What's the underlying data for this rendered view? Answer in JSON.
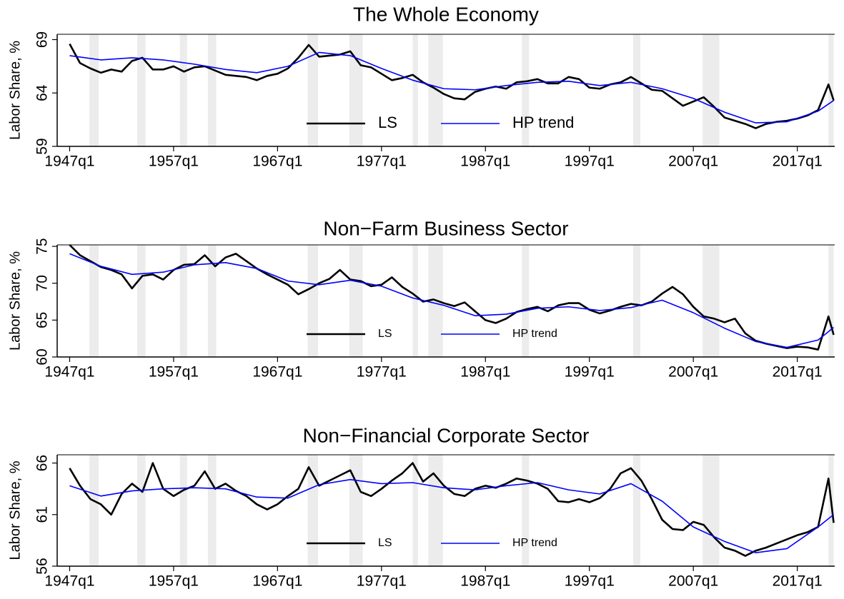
{
  "chart_data": [
    {
      "type": "line",
      "title": "The Whole Economy",
      "ylabel": "Labor Share, %",
      "xlim": [
        1945.8,
        2020.6
      ],
      "ylim": [
        59,
        69.5
      ],
      "yticks": [
        59,
        64,
        69
      ],
      "xticks": [
        {
          "value": 1947,
          "label": "1947q1"
        },
        {
          "value": 1957,
          "label": "1957q1"
        },
        {
          "value": 1967,
          "label": "1967q1"
        },
        {
          "value": 1977,
          "label": "1977q1"
        },
        {
          "value": 1987,
          "label": "1987q1"
        },
        {
          "value": 1997,
          "label": "1997q1"
        },
        {
          "value": 2007,
          "label": "2007q1"
        },
        {
          "value": 2017,
          "label": "2017q1"
        }
      ],
      "legend": "bottom",
      "recession_color": "#ececec",
      "recessions": [
        [
          1948.9,
          1949.8
        ],
        [
          1953.5,
          1954.3
        ],
        [
          1957.6,
          1958.3
        ],
        [
          1960.3,
          1961.1
        ],
        [
          1969.9,
          1970.9
        ],
        [
          1973.9,
          1975.2
        ],
        [
          1980.0,
          1980.5
        ],
        [
          1981.5,
          1982.9
        ],
        [
          1990.5,
          1991.2
        ],
        [
          2001.2,
          2001.9
        ],
        [
          2007.9,
          2009.5
        ],
        [
          2020.0,
          2020.5
        ]
      ],
      "series": [
        {
          "name": "LS",
          "color": "#000000",
          "x": [
            1947,
            1948,
            1949,
            1950,
            1951,
            1952,
            1953,
            1954,
            1955,
            1956,
            1957,
            1958,
            1959,
            1960,
            1961,
            1962,
            1963,
            1964,
            1965,
            1966,
            1967,
            1968,
            1969,
            1970,
            1971,
            1972,
            1973,
            1974,
            1975,
            1976,
            1977,
            1978,
            1979,
            1980,
            1981,
            1982,
            1983,
            1984,
            1985,
            1986,
            1987,
            1988,
            1989,
            1990,
            1991,
            1992,
            1993,
            1994,
            1995,
            1996,
            1997,
            1998,
            1999,
            2000,
            2001,
            2002,
            2003,
            2004,
            2005,
            2006,
            2007,
            2008,
            2009,
            2010,
            2011,
            2012,
            2013,
            2014,
            2015,
            2016,
            2017,
            2018,
            2019,
            2020,
            2020.5
          ],
          "values": [
            68.6,
            66.8,
            66.3,
            65.9,
            66.2,
            66.0,
            67.0,
            67.3,
            66.2,
            66.2,
            66.5,
            66.0,
            66.4,
            66.5,
            66.1,
            65.7,
            65.6,
            65.5,
            65.2,
            65.6,
            65.8,
            66.3,
            67.3,
            68.5,
            67.4,
            67.5,
            67.6,
            67.9,
            66.6,
            66.4,
            65.8,
            65.2,
            65.4,
            65.7,
            65.0,
            64.5,
            63.9,
            63.5,
            63.4,
            64.1,
            64.4,
            64.6,
            64.4,
            65.0,
            65.1,
            65.3,
            64.9,
            64.9,
            65.5,
            65.3,
            64.5,
            64.4,
            64.8,
            65.0,
            65.5,
            64.9,
            64.3,
            64.2,
            63.5,
            62.8,
            63.2,
            63.6,
            62.7,
            61.7,
            61.4,
            61.1,
            60.7,
            61.1,
            61.3,
            61.4,
            61.6,
            61.9,
            62.4,
            64.8,
            63.3
          ]
        },
        {
          "name": "HP trend",
          "color": "#0000ff",
          "x": [
            1947,
            1950,
            1953,
            1956,
            1959,
            1962,
            1965,
            1968,
            1971,
            1974,
            1977,
            1980,
            1983,
            1986,
            1989,
            1992,
            1995,
            1998,
            2001,
            2004,
            2007,
            2010,
            2013,
            2016,
            2019,
            2020.5
          ],
          "values": [
            67.5,
            67.1,
            67.3,
            67.1,
            66.7,
            66.2,
            65.9,
            66.5,
            67.8,
            67.5,
            66.3,
            65.2,
            64.4,
            64.3,
            64.7,
            65.0,
            65.1,
            64.7,
            65.0,
            64.4,
            63.5,
            62.2,
            61.2,
            61.3,
            62.3,
            63.3
          ]
        }
      ]
    },
    {
      "type": "line",
      "title": "Non−Farm Business Sector",
      "ylabel": "Labor Share, %",
      "xlim": [
        1945.8,
        2020.6
      ],
      "ylim": [
        60,
        75.2
      ],
      "yticks": [
        60,
        65,
        70,
        75
      ],
      "xticks": [
        {
          "value": 1947,
          "label": "1947q1"
        },
        {
          "value": 1957,
          "label": "1957q1"
        },
        {
          "value": 1967,
          "label": "1967q1"
        },
        {
          "value": 1977,
          "label": "1977q1"
        },
        {
          "value": 1987,
          "label": "1987q1"
        },
        {
          "value": 1997,
          "label": "1997q1"
        },
        {
          "value": 2007,
          "label": "2007q1"
        },
        {
          "value": 2017,
          "label": "2017q1"
        }
      ],
      "legend": "bottom",
      "recession_color": "#ececec",
      "recessions": [
        [
          1948.9,
          1949.8
        ],
        [
          1953.5,
          1954.3
        ],
        [
          1957.6,
          1958.3
        ],
        [
          1960.3,
          1961.1
        ],
        [
          1969.9,
          1970.9
        ],
        [
          1973.9,
          1975.2
        ],
        [
          1980.0,
          1980.5
        ],
        [
          1981.5,
          1982.9
        ],
        [
          1990.5,
          1991.2
        ],
        [
          2001.2,
          2001.9
        ],
        [
          2007.9,
          2009.5
        ],
        [
          2020.0,
          2020.5
        ]
      ],
      "series": [
        {
          "name": "LS",
          "color": "#000000",
          "x": [
            1947,
            1948,
            1949,
            1950,
            1951,
            1952,
            1953,
            1954,
            1955,
            1956,
            1957,
            1958,
            1959,
            1960,
            1961,
            1962,
            1963,
            1964,
            1965,
            1966,
            1967,
            1968,
            1969,
            1970,
            1971,
            1972,
            1973,
            1974,
            1975,
            1976,
            1977,
            1978,
            1979,
            1980,
            1981,
            1982,
            1983,
            1984,
            1985,
            1986,
            1987,
            1988,
            1989,
            1990,
            1991,
            1992,
            1993,
            1994,
            1995,
            1996,
            1997,
            1998,
            1999,
            2000,
            2001,
            2002,
            2003,
            2004,
            2005,
            2006,
            2007,
            2008,
            2009,
            2010,
            2011,
            2012,
            2013,
            2014,
            2015,
            2016,
            2017,
            2018,
            2019,
            2020,
            2020.5
          ],
          "values": [
            75.2,
            73.8,
            73.0,
            72.2,
            71.8,
            71.2,
            69.3,
            71.0,
            71.2,
            70.5,
            71.8,
            72.5,
            72.6,
            73.8,
            72.3,
            73.5,
            74.0,
            73.0,
            72.0,
            71.2,
            70.5,
            69.8,
            68.5,
            69.2,
            70.0,
            70.6,
            71.8,
            70.5,
            70.3,
            69.6,
            69.8,
            70.8,
            69.5,
            68.6,
            67.5,
            67.8,
            67.3,
            66.9,
            67.4,
            66.2,
            65.0,
            64.6,
            65.2,
            66.1,
            66.5,
            66.8,
            66.2,
            67.0,
            67.3,
            67.3,
            66.4,
            65.9,
            66.3,
            66.8,
            67.2,
            67.0,
            67.5,
            68.6,
            69.5,
            68.5,
            66.8,
            65.5,
            65.2,
            64.7,
            65.2,
            63.2,
            62.2,
            61.8,
            61.5,
            61.2,
            61.4,
            61.3,
            61.0,
            65.5,
            63.0
          ]
        },
        {
          "name": "HP trend",
          "color": "#0000ff",
          "x": [
            1947,
            1950,
            1953,
            1956,
            1959,
            1962,
            1965,
            1968,
            1971,
            1974,
            1977,
            1980,
            1983,
            1986,
            1989,
            1992,
            1995,
            1998,
            2001,
            2004,
            2007,
            2010,
            2013,
            2016,
            2019,
            2020.5
          ],
          "values": [
            74.0,
            72.3,
            71.2,
            71.5,
            72.5,
            72.8,
            72.0,
            70.3,
            69.8,
            70.4,
            69.6,
            68.0,
            67.0,
            65.6,
            65.8,
            66.6,
            66.8,
            66.3,
            66.7,
            67.7,
            66.0,
            63.9,
            62.1,
            61.3,
            62.3,
            64.0
          ]
        }
      ]
    },
    {
      "type": "line",
      "title": "Non−Financial Corporate Sector",
      "ylabel": "Labor Share, %",
      "xlim": [
        1945.8,
        2020.6
      ],
      "ylim": [
        56,
        66.8
      ],
      "yticks": [
        56,
        61,
        66
      ],
      "xticks": [
        {
          "value": 1947,
          "label": "1947q1"
        },
        {
          "value": 1957,
          "label": "1957q1"
        },
        {
          "value": 1967,
          "label": "1967q1"
        },
        {
          "value": 1977,
          "label": "1977q1"
        },
        {
          "value": 1987,
          "label": "1987q1"
        },
        {
          "value": 1997,
          "label": "1997q1"
        },
        {
          "value": 2007,
          "label": "2007q1"
        },
        {
          "value": 2017,
          "label": "2017q1"
        }
      ],
      "legend": "bottom",
      "recession_color": "#ececec",
      "recessions": [
        [
          1948.9,
          1949.8
        ],
        [
          1953.5,
          1954.3
        ],
        [
          1957.6,
          1958.3
        ],
        [
          1960.3,
          1961.1
        ],
        [
          1969.9,
          1970.9
        ],
        [
          1973.9,
          1975.2
        ],
        [
          1980.0,
          1980.5
        ],
        [
          1981.5,
          1982.9
        ],
        [
          1990.5,
          1991.2
        ],
        [
          2001.2,
          2001.9
        ],
        [
          2007.9,
          2009.5
        ],
        [
          2020.0,
          2020.5
        ]
      ],
      "series": [
        {
          "name": "LS",
          "color": "#000000",
          "x": [
            1947,
            1948,
            1949,
            1950,
            1951,
            1952,
            1953,
            1954,
            1955,
            1956,
            1957,
            1958,
            1959,
            1960,
            1961,
            1962,
            1963,
            1964,
            1965,
            1966,
            1967,
            1968,
            1969,
            1970,
            1971,
            1972,
            1973,
            1974,
            1975,
            1976,
            1977,
            1978,
            1979,
            1980,
            1981,
            1982,
            1983,
            1984,
            1985,
            1986,
            1987,
            1988,
            1989,
            1990,
            1991,
            1992,
            1993,
            1994,
            1995,
            1996,
            1997,
            1998,
            1999,
            2000,
            2001,
            2002,
            2003,
            2004,
            2005,
            2006,
            2007,
            2008,
            2009,
            2010,
            2011,
            2012,
            2013,
            2014,
            2015,
            2016,
            2017,
            2018,
            2019,
            2020,
            2020.5
          ],
          "values": [
            65.5,
            63.8,
            62.5,
            62.0,
            61.0,
            63.0,
            64.0,
            63.2,
            66.0,
            63.5,
            62.8,
            63.4,
            63.8,
            65.2,
            63.5,
            64.0,
            63.3,
            62.8,
            62.0,
            61.5,
            62.0,
            62.8,
            63.5,
            65.6,
            63.8,
            64.3,
            64.8,
            65.3,
            63.2,
            62.8,
            63.5,
            64.3,
            65.0,
            66.0,
            64.2,
            65.0,
            63.8,
            63.0,
            62.8,
            63.5,
            63.8,
            63.6,
            64.0,
            64.5,
            64.3,
            64.0,
            63.5,
            62.3,
            62.2,
            62.5,
            62.2,
            62.6,
            63.5,
            65.0,
            65.5,
            64.3,
            62.5,
            60.5,
            59.6,
            59.5,
            60.3,
            60.0,
            58.8,
            57.8,
            57.5,
            57.0,
            57.5,
            57.8,
            58.2,
            58.6,
            59.0,
            59.3,
            59.8,
            64.5,
            60.2
          ]
        },
        {
          "name": "HP trend",
          "color": "#0000ff",
          "x": [
            1947,
            1950,
            1953,
            1956,
            1959,
            1962,
            1965,
            1968,
            1971,
            1974,
            1977,
            1980,
            1983,
            1986,
            1989,
            1992,
            1995,
            1998,
            2001,
            2004,
            2007,
            2010,
            2013,
            2016,
            2019,
            2020.5
          ],
          "values": [
            63.8,
            62.8,
            63.3,
            63.5,
            63.6,
            63.5,
            62.7,
            62.6,
            63.9,
            64.4,
            64.0,
            64.1,
            63.6,
            63.4,
            63.8,
            64.1,
            63.4,
            63.0,
            64.0,
            62.3,
            59.8,
            58.4,
            57.3,
            57.7,
            59.8,
            61.0
          ]
        }
      ]
    }
  ]
}
